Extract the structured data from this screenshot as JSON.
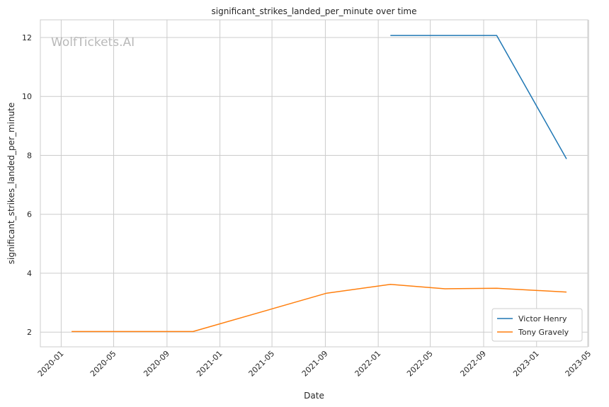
{
  "watermark": "WolfTickets.AI",
  "colors": {
    "grid": "#cccccc",
    "frame": "#cccccc",
    "victor": "#1f77b4",
    "tony": "#ff7f0e"
  },
  "chart_data": {
    "type": "line",
    "title": "significant_strikes_landed_per_minute over time",
    "xlabel": "Date",
    "ylabel": "significant_strikes_landed_per_minute",
    "xlim": [
      "2019-11-14",
      "2023-04-29"
    ],
    "ylim": [
      1.5,
      12.6
    ],
    "x_ticks": [
      "2020-01",
      "2020-05",
      "2020-09",
      "2021-01",
      "2021-05",
      "2021-09",
      "2022-01",
      "2022-05",
      "2022-09",
      "2023-01",
      "2023-05"
    ],
    "y_ticks": [
      2,
      4,
      6,
      8,
      10,
      12
    ],
    "grid": true,
    "legend": "bottom-right",
    "series": [
      {
        "name": "Victor Henry",
        "color": "#1f77b4",
        "points": [
          {
            "x": "2022-01-29",
            "y": 12.07
          },
          {
            "x": "2022-10-01",
            "y": 12.07
          },
          {
            "x": "2023-03-11",
            "y": 7.88
          }
        ]
      },
      {
        "name": "Tony Gravely",
        "color": "#ff7f0e",
        "points": [
          {
            "x": "2020-01-25",
            "y": 2.02
          },
          {
            "x": "2020-10-31",
            "y": 2.02
          },
          {
            "x": "2021-09-04",
            "y": 3.32
          },
          {
            "x": "2022-01-29",
            "y": 3.62
          },
          {
            "x": "2022-06-04",
            "y": 3.47
          },
          {
            "x": "2022-10-01",
            "y": 3.49
          },
          {
            "x": "2023-03-11",
            "y": 3.36
          }
        ]
      }
    ]
  }
}
